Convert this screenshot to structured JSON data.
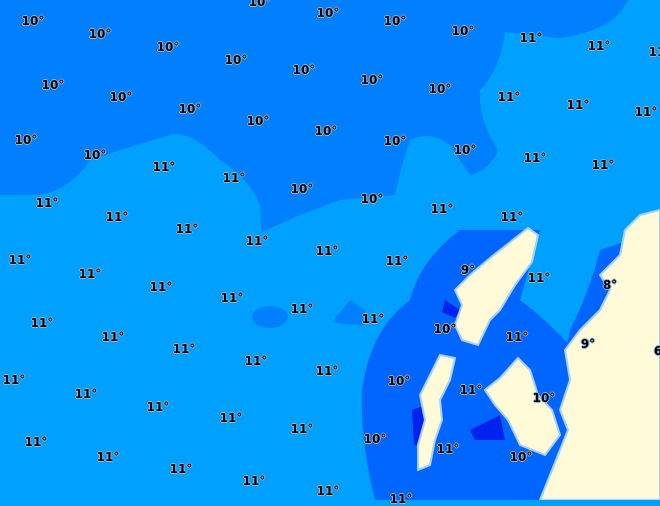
{
  "map": {
    "type": "sea surface temperature contour map",
    "unit": "°",
    "colors": {
      "sea_11": "#00a0ff",
      "sea_10": "#0080ff",
      "sea_10_coastal": "#0066ff",
      "sea_9": "#0022ee",
      "land": "#fffbd8",
      "coast": "#a8d0f0"
    },
    "labels": [
      "10°",
      "10°",
      "10°",
      "10°",
      "11°",
      "11°",
      "11°",
      "10°",
      "10°",
      "10°",
      "10°",
      "10°",
      "10°",
      "10°",
      "11°",
      "11°",
      "11°",
      "10°",
      "10°",
      "10°",
      "10°",
      "10°",
      "10°",
      "10°",
      "11°",
      "11°",
      "10°",
      "10°",
      "11°",
      "11°",
      "10°",
      "10°",
      "11°",
      "11°",
      "11°",
      "11°",
      "11°",
      "11°",
      "11°",
      "11°",
      "9°",
      "11°",
      "8°",
      "11°",
      "11°",
      "11°",
      "11°",
      "11°",
      "11°",
      "10°",
      "11°",
      "9°",
      "6",
      "11°",
      "11°",
      "11°",
      "11°",
      "11°",
      "10°",
      "11°",
      "10°",
      "11°",
      "11°",
      "11°",
      "11°",
      "11°",
      "10°",
      "11°",
      "10°",
      "11°",
      "11°",
      "11°",
      "11°",
      "11°",
      "11°"
    ]
  }
}
